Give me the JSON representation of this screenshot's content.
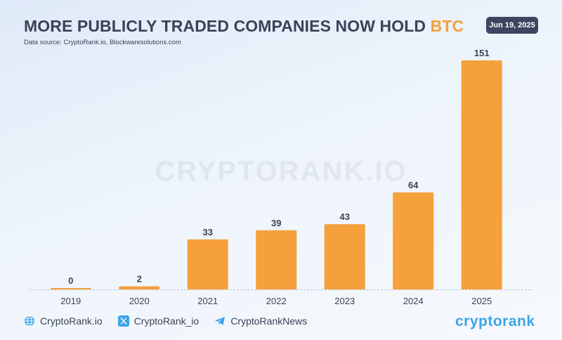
{
  "header": {
    "title_main": "MORE PUBLICLY TRADED COMPANIES NOW HOLD ",
    "title_accent": "BTC",
    "subtitle": "Data source: CryptoRank.io, Blockwaresolutions.com",
    "date": "Jun 19, 2025",
    "watermark": "CRYPTORANK.IO"
  },
  "colors": {
    "bar": "#f5a03a",
    "text": "#3a4257",
    "accent": "#f5a03a",
    "badge": "#3c4660",
    "brand": "#3da4e6"
  },
  "chart_data": {
    "type": "bar",
    "categories": [
      "2019",
      "2020",
      "2021",
      "2022",
      "2023",
      "2024",
      "2025"
    ],
    "values": [
      0,
      2,
      33,
      39,
      43,
      64,
      151
    ],
    "data_labels": [
      "0",
      "2",
      "33",
      "39",
      "43",
      "64",
      "151"
    ],
    "title": "MORE PUBLICLY TRADED COMPANIES NOW HOLD BTC",
    "xlabel": "",
    "ylabel": "",
    "ylim": [
      0,
      151
    ],
    "grid": false,
    "legend": "none"
  },
  "footer": {
    "links": [
      {
        "icon": "globe-icon",
        "label": "CryptoRank.io"
      },
      {
        "icon": "x-icon",
        "label": "CryptoRank_io"
      },
      {
        "icon": "telegram-icon",
        "label": "CryptoRankNews"
      }
    ],
    "brand": "cryptorank"
  }
}
